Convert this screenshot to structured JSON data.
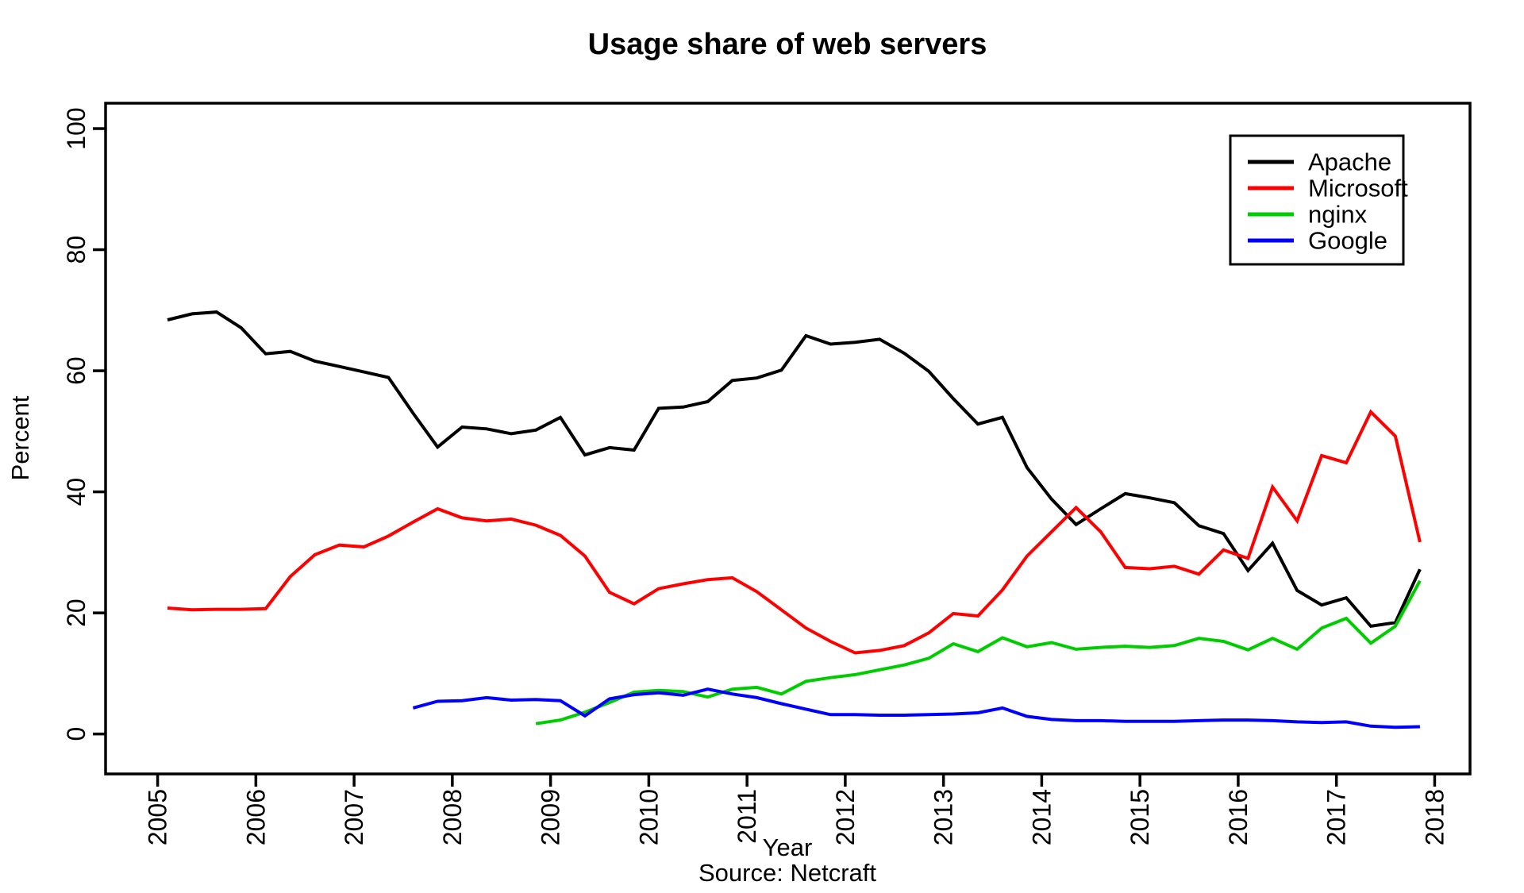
{
  "page": {
    "background": "#ffffff"
  },
  "chart_data": {
    "type": "line",
    "title": "Usage share of web servers",
    "xlabel": "Year",
    "ylabel": "Percent",
    "subtitle": "Source:  Netcraft",
    "legend_position": "top-right",
    "grid": false,
    "xlim": [
      2004.47,
      2018.36
    ],
    "ylim": [
      -6.6,
      104.2
    ],
    "x_ticks": [
      2005,
      2006,
      2007,
      2008,
      2009,
      2010,
      2011,
      2012,
      2013,
      2014,
      2015,
      2016,
      2017,
      2018
    ],
    "y_ticks": [
      0,
      20,
      40,
      60,
      80,
      100
    ],
    "x": [
      2005.1,
      2005.35,
      2005.6,
      2005.85,
      2006.1,
      2006.35,
      2006.6,
      2006.85,
      2007.1,
      2007.35,
      2007.6,
      2007.85,
      2008.1,
      2008.35,
      2008.6,
      2008.85,
      2009.1,
      2009.35,
      2009.6,
      2009.85,
      2010.1,
      2010.35,
      2010.6,
      2010.85,
      2011.1,
      2011.35,
      2011.6,
      2011.85,
      2012.1,
      2012.35,
      2012.6,
      2012.85,
      2013.1,
      2013.35,
      2013.6,
      2013.85,
      2014.1,
      2014.35,
      2014.6,
      2014.85,
      2015.1,
      2015.35,
      2015.6,
      2015.85,
      2016.1,
      2016.35,
      2016.6,
      2016.85,
      2017.1,
      2017.35,
      2017.6,
      2017.85
    ],
    "series": [
      {
        "name": "Apache",
        "color": "#000000",
        "values": [
          68.4,
          69.4,
          69.7,
          67.1,
          62.8,
          63.2,
          61.6,
          60.7,
          59.8,
          58.9,
          53.0,
          47.4,
          50.7,
          50.4,
          49.6,
          50.2,
          52.3,
          46.1,
          47.3,
          46.9,
          53.8,
          54.0,
          54.9,
          58.4,
          58.8,
          60.1,
          65.8,
          64.4,
          64.7,
          65.2,
          62.9,
          59.9,
          55.4,
          51.2,
          52.3,
          44.0,
          38.8,
          34.6,
          37.2,
          39.7,
          39.0,
          38.2,
          34.4,
          33.1,
          27.0,
          31.5,
          23.7,
          21.3,
          22.5,
          17.8,
          18.4,
          27.2
        ]
      },
      {
        "name": "Microsoft",
        "color": "#FF0000",
        "values": [
          20.8,
          20.5,
          20.6,
          20.6,
          20.7,
          26.0,
          29.6,
          31.2,
          30.9,
          32.7,
          35.0,
          37.2,
          35.7,
          35.2,
          35.5,
          34.5,
          32.8,
          29.4,
          23.4,
          21.5,
          24.0,
          24.8,
          25.5,
          25.8,
          23.5,
          20.5,
          17.5,
          15.3,
          13.4,
          13.8,
          14.6,
          16.7,
          19.9,
          19.5,
          23.8,
          29.4,
          33.4,
          37.4,
          33.4,
          27.5,
          27.3,
          27.7,
          26.4,
          30.4,
          29.0,
          40.8,
          35.2,
          46.0,
          44.8,
          53.2,
          49.2,
          31.7
        ]
      },
      {
        "name": "nginx",
        "color": "#00CD00",
        "values": [
          null,
          null,
          null,
          null,
          null,
          null,
          null,
          null,
          null,
          null,
          null,
          null,
          null,
          null,
          null,
          1.7,
          2.3,
          3.6,
          5.2,
          6.9,
          7.2,
          7.0,
          6.1,
          7.4,
          7.7,
          6.6,
          8.7,
          9.3,
          9.8,
          10.6,
          11.4,
          12.5,
          14.9,
          13.6,
          15.9,
          14.4,
          15.1,
          14.0,
          14.3,
          14.5,
          14.3,
          14.6,
          15.8,
          15.3,
          13.9,
          15.8,
          14.0,
          17.5,
          19.1,
          15.0,
          17.8,
          25.3
        ]
      },
      {
        "name": "Google",
        "color": "#0000FF",
        "values": [
          null,
          null,
          null,
          null,
          null,
          null,
          null,
          null,
          null,
          null,
          4.3,
          5.4,
          5.5,
          6.0,
          5.6,
          5.7,
          5.5,
          3.0,
          5.8,
          6.5,
          6.8,
          6.4,
          7.4,
          6.6,
          6.0,
          5.0,
          4.1,
          3.2,
          3.2,
          3.1,
          3.1,
          3.2,
          3.3,
          3.5,
          4.3,
          2.9,
          2.4,
          2.2,
          2.2,
          2.1,
          2.1,
          2.1,
          2.2,
          2.3,
          2.3,
          2.2,
          2.0,
          1.9,
          2.0,
          1.3,
          1.1,
          1.2
        ]
      }
    ]
  },
  "layout_hints": {
    "plot_border": true,
    "tick_label_rotation_deg": -90
  }
}
